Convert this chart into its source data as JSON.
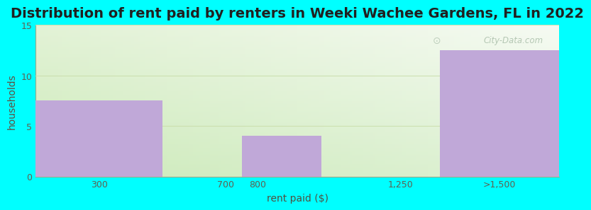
{
  "title": "Distribution of rent paid by renters in Weeki Wachee Gardens, FL in 2022",
  "xlabel": "rent paid ($)",
  "ylabel": "households",
  "background_color": "#00FFFF",
  "bar_color": "#c0a8d8",
  "bar_edge_color": "#b09ac8",
  "categories": [
    "300",
    "700",
    "800",
    "1,250",
    ">1,500"
  ],
  "values": [
    7.5,
    0,
    4,
    0,
    12.5
  ],
  "ylim": [
    0,
    15
  ],
  "yticks": [
    0,
    5,
    10,
    15
  ],
  "title_fontsize": 14,
  "axis_label_fontsize": 10,
  "tick_fontsize": 9,
  "watermark_text": "City-Data.com",
  "bar_left_edges": [
    100,
    500,
    750,
    1000,
    1375
  ],
  "bar_right_edges": [
    500,
    750,
    1000,
    1375,
    1750
  ],
  "xlim": [
    100,
    1750
  ],
  "xtick_positions": [
    300,
    700,
    800,
    1250,
    1562
  ],
  "xtick_labels": [
    "300",
    "700",
    "800",
    "1,250",
    ">1,500"
  ],
  "gradient_colors_top": "#f5faf0",
  "gradient_colors_bottom": "#d0ecc0"
}
